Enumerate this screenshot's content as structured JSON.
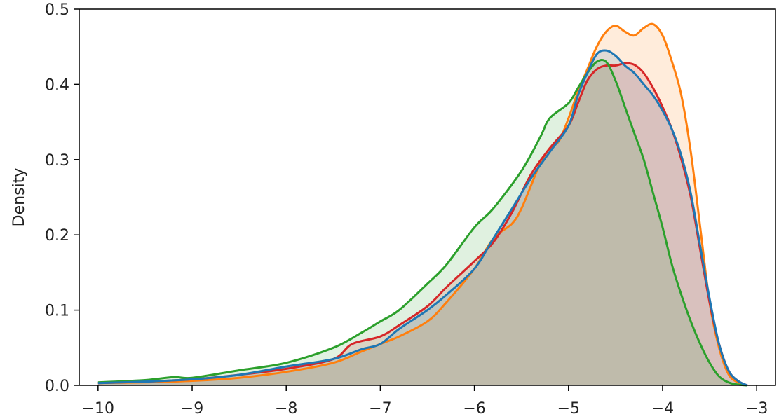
{
  "chart_data": {
    "type": "area",
    "title": "",
    "xlabel": "",
    "ylabel": "Density",
    "xlim": [
      -10.2,
      -2.8
    ],
    "ylim": [
      0,
      0.5
    ],
    "xticks": [
      -10,
      -9,
      -8,
      -7,
      -6,
      -5,
      -4,
      -3
    ],
    "xtick_labels": [
      "−10",
      "−9",
      "−8",
      "−7",
      "−6",
      "−5",
      "−4",
      "−3"
    ],
    "yticks": [
      0.0,
      0.1,
      0.2,
      0.3,
      0.4,
      0.5
    ],
    "ytick_labels": [
      "0.0",
      "0.1",
      "0.2",
      "0.3",
      "0.4",
      "0.5"
    ],
    "grid": false,
    "legend": "none",
    "series": [
      {
        "color": "#ff7f0e",
        "x": [
          -10,
          -9.5,
          -9,
          -8.5,
          -8,
          -7.5,
          -7.2,
          -7,
          -6.8,
          -6.5,
          -6.3,
          -6,
          -5.8,
          -5.6,
          -5.5,
          -5.4,
          -5.3,
          -5.2,
          -5.1,
          -5,
          -4.9,
          -4.8,
          -4.7,
          -4.6,
          -4.5,
          -4.4,
          -4.3,
          -4.2,
          -4.1,
          -4,
          -3.9,
          -3.8,
          -3.7,
          -3.6,
          -3.5,
          -3.4,
          -3.3,
          -3.2,
          -3.1
        ],
        "y": [
          0.003,
          0.004,
          0.006,
          0.01,
          0.018,
          0.03,
          0.045,
          0.055,
          0.065,
          0.085,
          0.11,
          0.155,
          0.195,
          0.215,
          0.235,
          0.265,
          0.295,
          0.315,
          0.325,
          0.355,
          0.39,
          0.42,
          0.45,
          0.47,
          0.478,
          0.47,
          0.465,
          0.475,
          0.48,
          0.465,
          0.43,
          0.385,
          0.31,
          0.21,
          0.11,
          0.05,
          0.015,
          0.004,
          0.0
        ]
      },
      {
        "color": "#d62728",
        "x": [
          -10,
          -9.5,
          -9,
          -8.5,
          -8,
          -7.5,
          -7.3,
          -7,
          -6.8,
          -6.5,
          -6.3,
          -6,
          -5.8,
          -5.6,
          -5.4,
          -5.2,
          -5,
          -4.9,
          -4.8,
          -4.7,
          -4.6,
          -4.5,
          -4.4,
          -4.3,
          -4.2,
          -4.1,
          -4,
          -3.9,
          -3.8,
          -3.7,
          -3.6,
          -3.5,
          -3.4,
          -3.3,
          -3.2,
          -3.1
        ],
        "y": [
          0.003,
          0.005,
          0.008,
          0.014,
          0.022,
          0.035,
          0.055,
          0.065,
          0.08,
          0.105,
          0.13,
          0.165,
          0.19,
          0.23,
          0.28,
          0.315,
          0.345,
          0.375,
          0.405,
          0.42,
          0.425,
          0.425,
          0.428,
          0.426,
          0.415,
          0.395,
          0.37,
          0.34,
          0.3,
          0.25,
          0.18,
          0.11,
          0.055,
          0.02,
          0.006,
          0.0
        ]
      },
      {
        "color": "#2ca02c",
        "x": [
          -10,
          -9.5,
          -9.2,
          -9,
          -8.5,
          -8,
          -7.5,
          -7.2,
          -7,
          -6.8,
          -6.5,
          -6.3,
          -6,
          -5.8,
          -5.5,
          -5.3,
          -5.2,
          -5,
          -4.9,
          -4.8,
          -4.7,
          -4.6,
          -4.5,
          -4.4,
          -4.3,
          -4.2,
          -4.1,
          -4,
          -3.9,
          -3.8,
          -3.7,
          -3.6,
          -3.5,
          -3.4,
          -3.3,
          -3.2,
          -3.1
        ],
        "y": [
          0.004,
          0.007,
          0.011,
          0.01,
          0.02,
          0.03,
          0.05,
          0.07,
          0.085,
          0.1,
          0.135,
          0.16,
          0.21,
          0.235,
          0.285,
          0.33,
          0.355,
          0.375,
          0.395,
          0.415,
          0.43,
          0.43,
          0.405,
          0.37,
          0.335,
          0.3,
          0.255,
          0.21,
          0.16,
          0.12,
          0.085,
          0.055,
          0.03,
          0.012,
          0.004,
          0.001,
          0.0
        ]
      },
      {
        "color": "#1f77b4",
        "x": [
          -10,
          -9.5,
          -9,
          -8.5,
          -8,
          -7.5,
          -7.2,
          -7,
          -6.8,
          -6.5,
          -6.3,
          -6,
          -5.8,
          -5.6,
          -5.4,
          -5.2,
          -5,
          -4.9,
          -4.8,
          -4.7,
          -4.6,
          -4.5,
          -4.4,
          -4.3,
          -4.2,
          -4.1,
          -4,
          -3.9,
          -3.8,
          -3.7,
          -3.6,
          -3.5,
          -3.4,
          -3.3,
          -3.2,
          -3.1
        ],
        "y": [
          0.003,
          0.005,
          0.008,
          0.014,
          0.025,
          0.035,
          0.048,
          0.055,
          0.075,
          0.1,
          0.12,
          0.155,
          0.195,
          0.235,
          0.275,
          0.31,
          0.345,
          0.385,
          0.415,
          0.44,
          0.445,
          0.438,
          0.425,
          0.415,
          0.4,
          0.385,
          0.365,
          0.34,
          0.305,
          0.255,
          0.185,
          0.115,
          0.055,
          0.02,
          0.006,
          0.0
        ]
      }
    ]
  }
}
